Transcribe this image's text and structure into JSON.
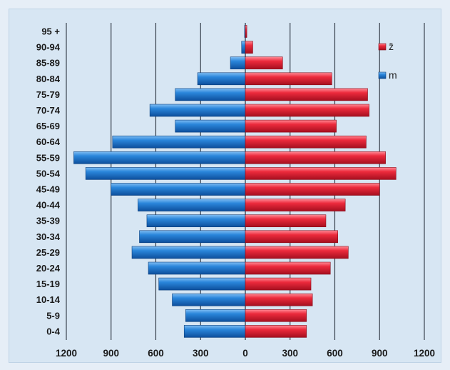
{
  "chart_data": {
    "type": "bar",
    "orientation": "horizontal-population-pyramid",
    "categories": [
      "0-4",
      "5-9",
      "10-14",
      "15-19",
      "20-24",
      "25-29",
      "30-34",
      "35-39",
      "40-44",
      "45-49",
      "50-54",
      "55-59",
      "60-64",
      "65-69",
      "70-74",
      "75-79",
      "80-84",
      "85-89",
      "90-94",
      "95 +"
    ],
    "series": [
      {
        "name": "m",
        "side": "left",
        "color": "#1f77d0",
        "values": [
          410,
          400,
          490,
          580,
          650,
          760,
          710,
          660,
          720,
          900,
          1070,
          1150,
          890,
          470,
          640,
          470,
          320,
          100,
          25,
          5
        ]
      },
      {
        "name": "ž",
        "side": "right",
        "color": "#e8283c",
        "values": [
          410,
          410,
          450,
          440,
          570,
          690,
          620,
          540,
          670,
          900,
          1010,
          940,
          810,
          610,
          830,
          820,
          580,
          250,
          50,
          10
        ]
      }
    ],
    "xlim": [
      -1200,
      1200
    ],
    "xticks": [
      "1200",
      "900",
      "600",
      "300",
      "0",
      "300",
      "600",
      "900",
      "1200"
    ],
    "xtick_values": [
      -1200,
      -900,
      -600,
      -300,
      0,
      300,
      600,
      900,
      1200
    ],
    "grid": "vertical",
    "legend": {
      "placement": "top-right",
      "items": [
        "ž",
        "m"
      ]
    }
  }
}
